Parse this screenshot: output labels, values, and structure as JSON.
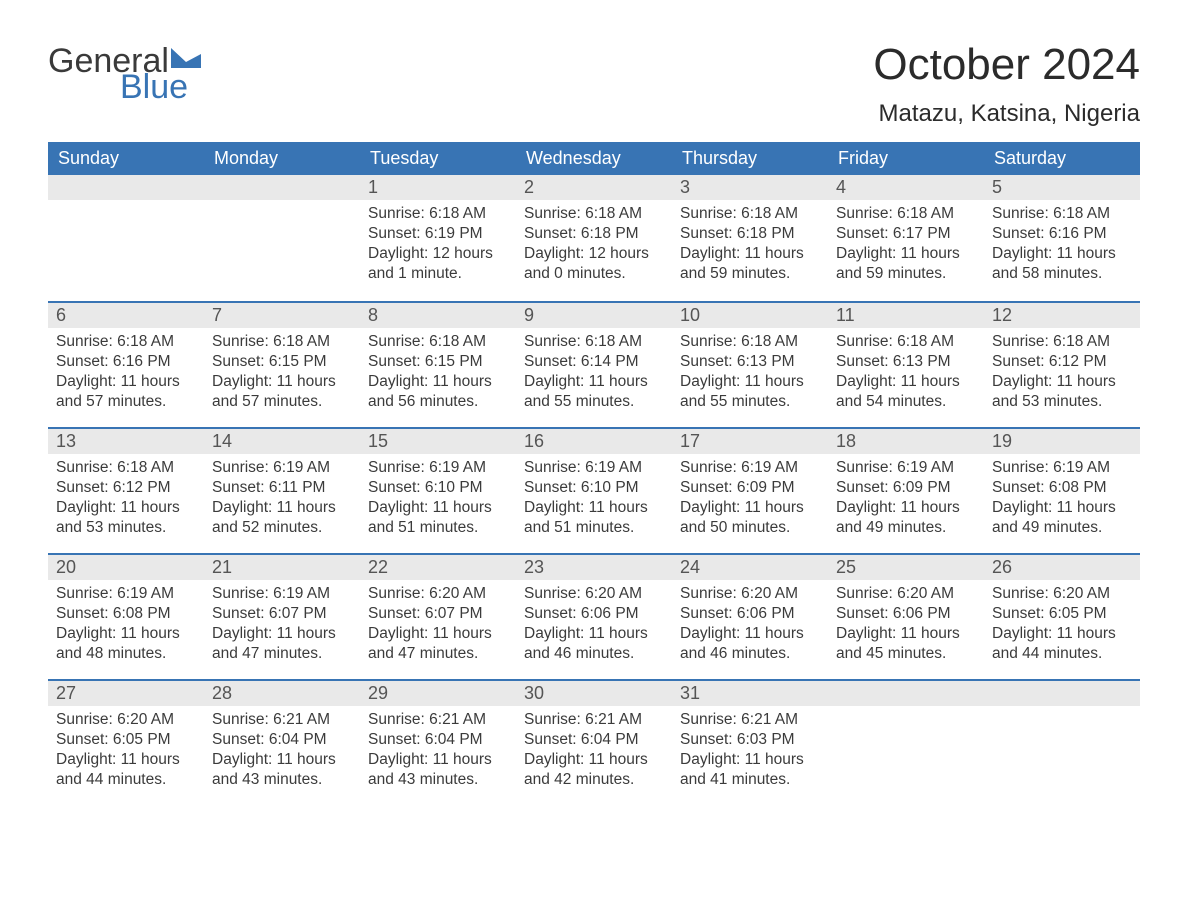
{
  "logo": {
    "top": "General",
    "bottom": "Blue",
    "flag_color": "#3874b4"
  },
  "title": "October 2024",
  "location": "Matazu, Katsina, Nigeria",
  "colors": {
    "header_bg": "#3874b4",
    "header_text": "#ffffff",
    "daynum_bg": "#e9e9e9",
    "week_border": "#3874b4",
    "body_text": "#3b3b3b",
    "page_bg": "#ffffff"
  },
  "typography": {
    "title_fontsize": 44,
    "location_fontsize": 24,
    "weekday_fontsize": 18,
    "daynum_fontsize": 18,
    "body_fontsize": 15.5
  },
  "weekdays": [
    "Sunday",
    "Monday",
    "Tuesday",
    "Wednesday",
    "Thursday",
    "Friday",
    "Saturday"
  ],
  "layout": {
    "first_day_column": 2,
    "days_in_month": 31
  },
  "days": [
    {
      "n": 1,
      "sunrise": "6:18 AM",
      "sunset": "6:19 PM",
      "daylight": "12 hours and 1 minute."
    },
    {
      "n": 2,
      "sunrise": "6:18 AM",
      "sunset": "6:18 PM",
      "daylight": "12 hours and 0 minutes."
    },
    {
      "n": 3,
      "sunrise": "6:18 AM",
      "sunset": "6:18 PM",
      "daylight": "11 hours and 59 minutes."
    },
    {
      "n": 4,
      "sunrise": "6:18 AM",
      "sunset": "6:17 PM",
      "daylight": "11 hours and 59 minutes."
    },
    {
      "n": 5,
      "sunrise": "6:18 AM",
      "sunset": "6:16 PM",
      "daylight": "11 hours and 58 minutes."
    },
    {
      "n": 6,
      "sunrise": "6:18 AM",
      "sunset": "6:16 PM",
      "daylight": "11 hours and 57 minutes."
    },
    {
      "n": 7,
      "sunrise": "6:18 AM",
      "sunset": "6:15 PM",
      "daylight": "11 hours and 57 minutes."
    },
    {
      "n": 8,
      "sunrise": "6:18 AM",
      "sunset": "6:15 PM",
      "daylight": "11 hours and 56 minutes."
    },
    {
      "n": 9,
      "sunrise": "6:18 AM",
      "sunset": "6:14 PM",
      "daylight": "11 hours and 55 minutes."
    },
    {
      "n": 10,
      "sunrise": "6:18 AM",
      "sunset": "6:13 PM",
      "daylight": "11 hours and 55 minutes."
    },
    {
      "n": 11,
      "sunrise": "6:18 AM",
      "sunset": "6:13 PM",
      "daylight": "11 hours and 54 minutes."
    },
    {
      "n": 12,
      "sunrise": "6:18 AM",
      "sunset": "6:12 PM",
      "daylight": "11 hours and 53 minutes."
    },
    {
      "n": 13,
      "sunrise": "6:18 AM",
      "sunset": "6:12 PM",
      "daylight": "11 hours and 53 minutes."
    },
    {
      "n": 14,
      "sunrise": "6:19 AM",
      "sunset": "6:11 PM",
      "daylight": "11 hours and 52 minutes."
    },
    {
      "n": 15,
      "sunrise": "6:19 AM",
      "sunset": "6:10 PM",
      "daylight": "11 hours and 51 minutes."
    },
    {
      "n": 16,
      "sunrise": "6:19 AM",
      "sunset": "6:10 PM",
      "daylight": "11 hours and 51 minutes."
    },
    {
      "n": 17,
      "sunrise": "6:19 AM",
      "sunset": "6:09 PM",
      "daylight": "11 hours and 50 minutes."
    },
    {
      "n": 18,
      "sunrise": "6:19 AM",
      "sunset": "6:09 PM",
      "daylight": "11 hours and 49 minutes."
    },
    {
      "n": 19,
      "sunrise": "6:19 AM",
      "sunset": "6:08 PM",
      "daylight": "11 hours and 49 minutes."
    },
    {
      "n": 20,
      "sunrise": "6:19 AM",
      "sunset": "6:08 PM",
      "daylight": "11 hours and 48 minutes."
    },
    {
      "n": 21,
      "sunrise": "6:19 AM",
      "sunset": "6:07 PM",
      "daylight": "11 hours and 47 minutes."
    },
    {
      "n": 22,
      "sunrise": "6:20 AM",
      "sunset": "6:07 PM",
      "daylight": "11 hours and 47 minutes."
    },
    {
      "n": 23,
      "sunrise": "6:20 AM",
      "sunset": "6:06 PM",
      "daylight": "11 hours and 46 minutes."
    },
    {
      "n": 24,
      "sunrise": "6:20 AM",
      "sunset": "6:06 PM",
      "daylight": "11 hours and 46 minutes."
    },
    {
      "n": 25,
      "sunrise": "6:20 AM",
      "sunset": "6:06 PM",
      "daylight": "11 hours and 45 minutes."
    },
    {
      "n": 26,
      "sunrise": "6:20 AM",
      "sunset": "6:05 PM",
      "daylight": "11 hours and 44 minutes."
    },
    {
      "n": 27,
      "sunrise": "6:20 AM",
      "sunset": "6:05 PM",
      "daylight": "11 hours and 44 minutes."
    },
    {
      "n": 28,
      "sunrise": "6:21 AM",
      "sunset": "6:04 PM",
      "daylight": "11 hours and 43 minutes."
    },
    {
      "n": 29,
      "sunrise": "6:21 AM",
      "sunset": "6:04 PM",
      "daylight": "11 hours and 43 minutes."
    },
    {
      "n": 30,
      "sunrise": "6:21 AM",
      "sunset": "6:04 PM",
      "daylight": "11 hours and 42 minutes."
    },
    {
      "n": 31,
      "sunrise": "6:21 AM",
      "sunset": "6:03 PM",
      "daylight": "11 hours and 41 minutes."
    }
  ],
  "labels": {
    "sunrise": "Sunrise:",
    "sunset": "Sunset:",
    "daylight": "Daylight:"
  }
}
